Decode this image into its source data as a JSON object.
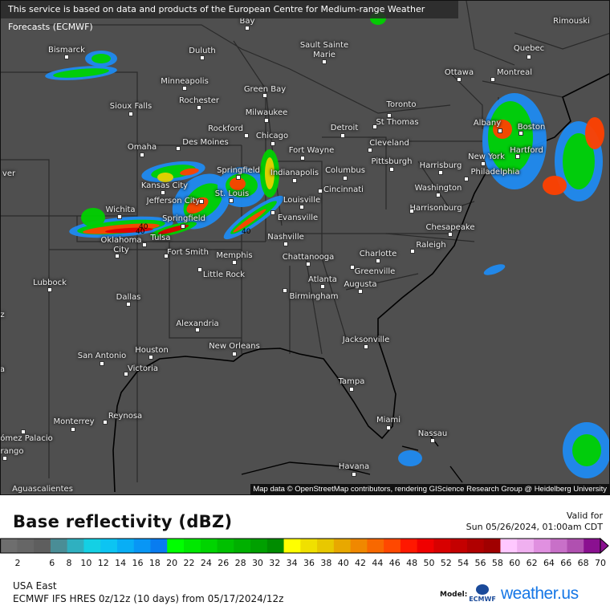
{
  "banner": "This service is based on data and products of the European Centre for Medium-range Weather Forecasts (ECMWF)",
  "attribution": "Map data © OpenStreetMap contributors, rendering GIScience Research Group @ Heidelberg University",
  "cities": [
    "Bay",
    "Rimouski",
    "Sault Sainte\nMarie",
    "Bismarck",
    "Duluth",
    "Quebec",
    "Ottawa",
    "Montreal",
    "Minneapolis",
    "Green Bay",
    "Rochester",
    "Sioux Falls",
    "Milwaukee",
    "Toronto",
    "St Thomas",
    "Rockford",
    "Chicago",
    "Detroit",
    "Boston",
    "Albany",
    "Des Moines",
    "Omaha",
    "Fort Wayne",
    "Cleveland",
    "Hartford",
    "Harrisburg",
    "New York",
    "Pittsburgh",
    "Philadelphia",
    "Springfield",
    "Indianapolis",
    "Columbus",
    "Kansas City",
    "Cincinnati",
    "Washington",
    "Louisville",
    "Jefferson City",
    "St. Louis",
    "Harrisonburg",
    "Evansville",
    "Wichita",
    "Springfield",
    "Chesapeake",
    "Oklahoma\nCity",
    "Tulsa",
    "Nashville",
    "Raleigh",
    "Fort Smith",
    "Memphis",
    "Chattanooga",
    "Charlotte",
    "Greenville",
    "Little Rock",
    "Lubbock",
    "Atlanta",
    "Augusta",
    "Birmingham",
    "Dallas",
    "Alexandria",
    "New Orleans",
    "Jacksonville",
    "San Antonio",
    "Houston",
    "Victoria",
    "Tampa",
    "Miami",
    "Reynosa",
    "Monterrey",
    "Nassau",
    "ómez Palacio",
    "rango",
    "Havana",
    "Aguascalientes",
    "ver",
    "z",
    "a"
  ],
  "contour_labels": [
    "40",
    "40",
    "40"
  ],
  "legend": {
    "title": "Base reflectivity (dBZ)",
    "valid_label": "Valid for",
    "valid_time": "Sun 05/26/2024, 01:00am CDT",
    "ticks": [
      2,
      6,
      8,
      10,
      12,
      14,
      16,
      18,
      20,
      22,
      24,
      26,
      28,
      30,
      32,
      34,
      36,
      38,
      40,
      42,
      44,
      46,
      48,
      50,
      52,
      54,
      56,
      58,
      60,
      62,
      64,
      66,
      68,
      70
    ],
    "range": [
      0,
      70
    ],
    "colors": [
      "#6e6e6e",
      "#666666",
      "#5e5e5e",
      "#4a8d96",
      "#2fb0c0",
      "#14d0e4",
      "#0cc4f2",
      "#08aef5",
      "#0896f5",
      "#087cf0",
      "#00ff00",
      "#00e800",
      "#00d400",
      "#00c000",
      "#00b000",
      "#00a000",
      "#008c00",
      "#ffff00",
      "#f0e000",
      "#e8c800",
      "#e8a800",
      "#f08800",
      "#f86800",
      "#ff4800",
      "#ff1800",
      "#f00000",
      "#d80000",
      "#c40000",
      "#b00000",
      "#a00000",
      "#ffc8ff",
      "#f0b0f0",
      "#e090e0",
      "#c870c8",
      "#b050b0",
      "#8a1090"
    ]
  },
  "region": "USA East",
  "model_run": "ECMWF IFS HRES 0z/12z (10 days) from  05/17/2024/12z",
  "model_label": "Model:",
  "ecmwf_logo": "ECMWF",
  "brand": "weather.us"
}
